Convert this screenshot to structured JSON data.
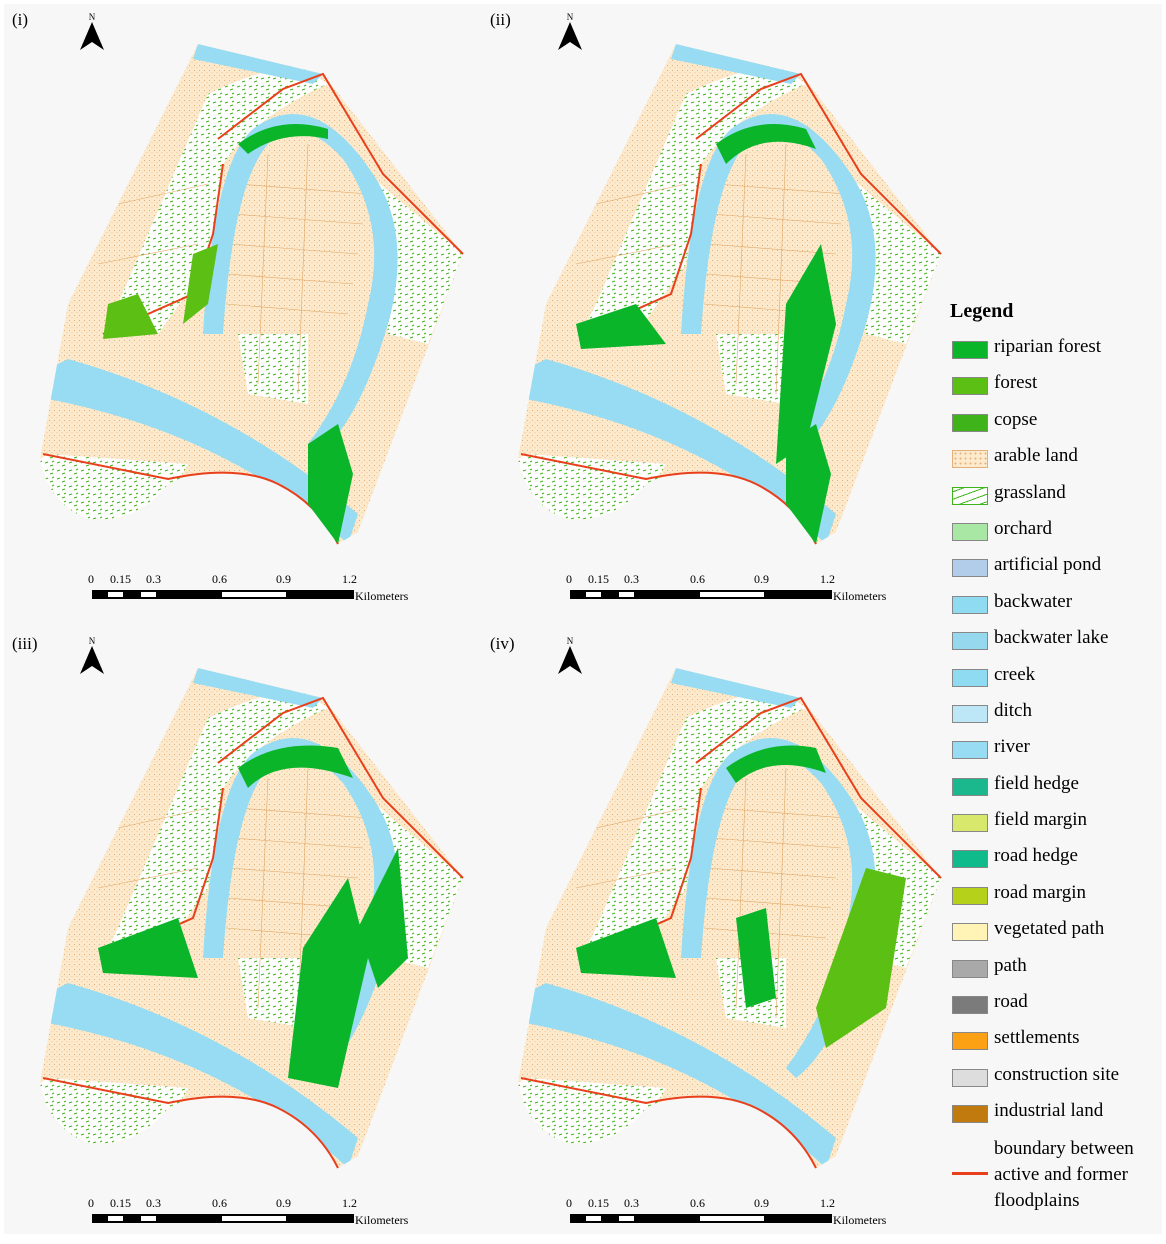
{
  "panels": [
    {
      "label": "(i)"
    },
    {
      "label": "(ii)"
    },
    {
      "label": "(iii)"
    },
    {
      "label": "(iv)"
    }
  ],
  "north_label": "N",
  "scale_bar": {
    "ticks": [
      "0",
      "0.15",
      "0.3",
      "0.6",
      "0.9",
      "1.2"
    ],
    "unit": "Kilometers"
  },
  "legend": {
    "title": "Legend",
    "items": [
      {
        "label": "riparian forest",
        "color": "#0ab52a",
        "pattern": "solid"
      },
      {
        "label": "forest",
        "color": "#5bbf14",
        "pattern": "solid"
      },
      {
        "label": "copse",
        "color": "#3fb41a",
        "pattern": "solid"
      },
      {
        "label": "arable land",
        "color": "#fdeacd",
        "pattern": "dots"
      },
      {
        "label": "grassland",
        "color": "#ffffff",
        "pattern": "grass"
      },
      {
        "label": "orchard",
        "color": "#a8e8a4",
        "pattern": "solid"
      },
      {
        "label": "artificial pond",
        "color": "#b2cdea",
        "pattern": "solid"
      },
      {
        "label": "backwater",
        "color": "#8fdcf2",
        "pattern": "solid"
      },
      {
        "label": "backwater lake",
        "color": "#96d8ee",
        "pattern": "solid"
      },
      {
        "label": "creek",
        "color": "#8fdcf2",
        "pattern": "solid"
      },
      {
        "label": "ditch",
        "color": "#bde6f6",
        "pattern": "solid"
      },
      {
        "label": "river",
        "color": "#97dcf2",
        "pattern": "solid"
      },
      {
        "label": "field hedge",
        "color": "#1bb88e",
        "pattern": "solid"
      },
      {
        "label": "field margin",
        "color": "#d7e86d",
        "pattern": "solid"
      },
      {
        "label": "road hedge",
        "color": "#10bb8b",
        "pattern": "solid"
      },
      {
        "label": "road margin",
        "color": "#b5d11a",
        "pattern": "solid"
      },
      {
        "label": "vegetated path",
        "color": "#fff3b5",
        "pattern": "solid"
      },
      {
        "label": "path",
        "color": "#a9a9a9",
        "pattern": "solid"
      },
      {
        "label": "road",
        "color": "#7b7b7b",
        "pattern": "solid"
      },
      {
        "label": "settlements",
        "color": "#fca114",
        "pattern": "solid"
      },
      {
        "label": "construction site",
        "color": "#dddddd",
        "pattern": "solid"
      },
      {
        "label": "industrial land",
        "color": "#c17a0e",
        "pattern": "solid"
      }
    ],
    "boundary": {
      "label": "boundary between active and former floodplains",
      "color": "#e8401c"
    }
  },
  "colors": {
    "river": "#97dcf2",
    "riparian_forest": "#0ab52a",
    "forest": "#5bbf14",
    "arable": "#fdeacd",
    "grass": "#ffffff",
    "grass_mark": "#3fb41a",
    "boundary": "#e8401c"
  }
}
